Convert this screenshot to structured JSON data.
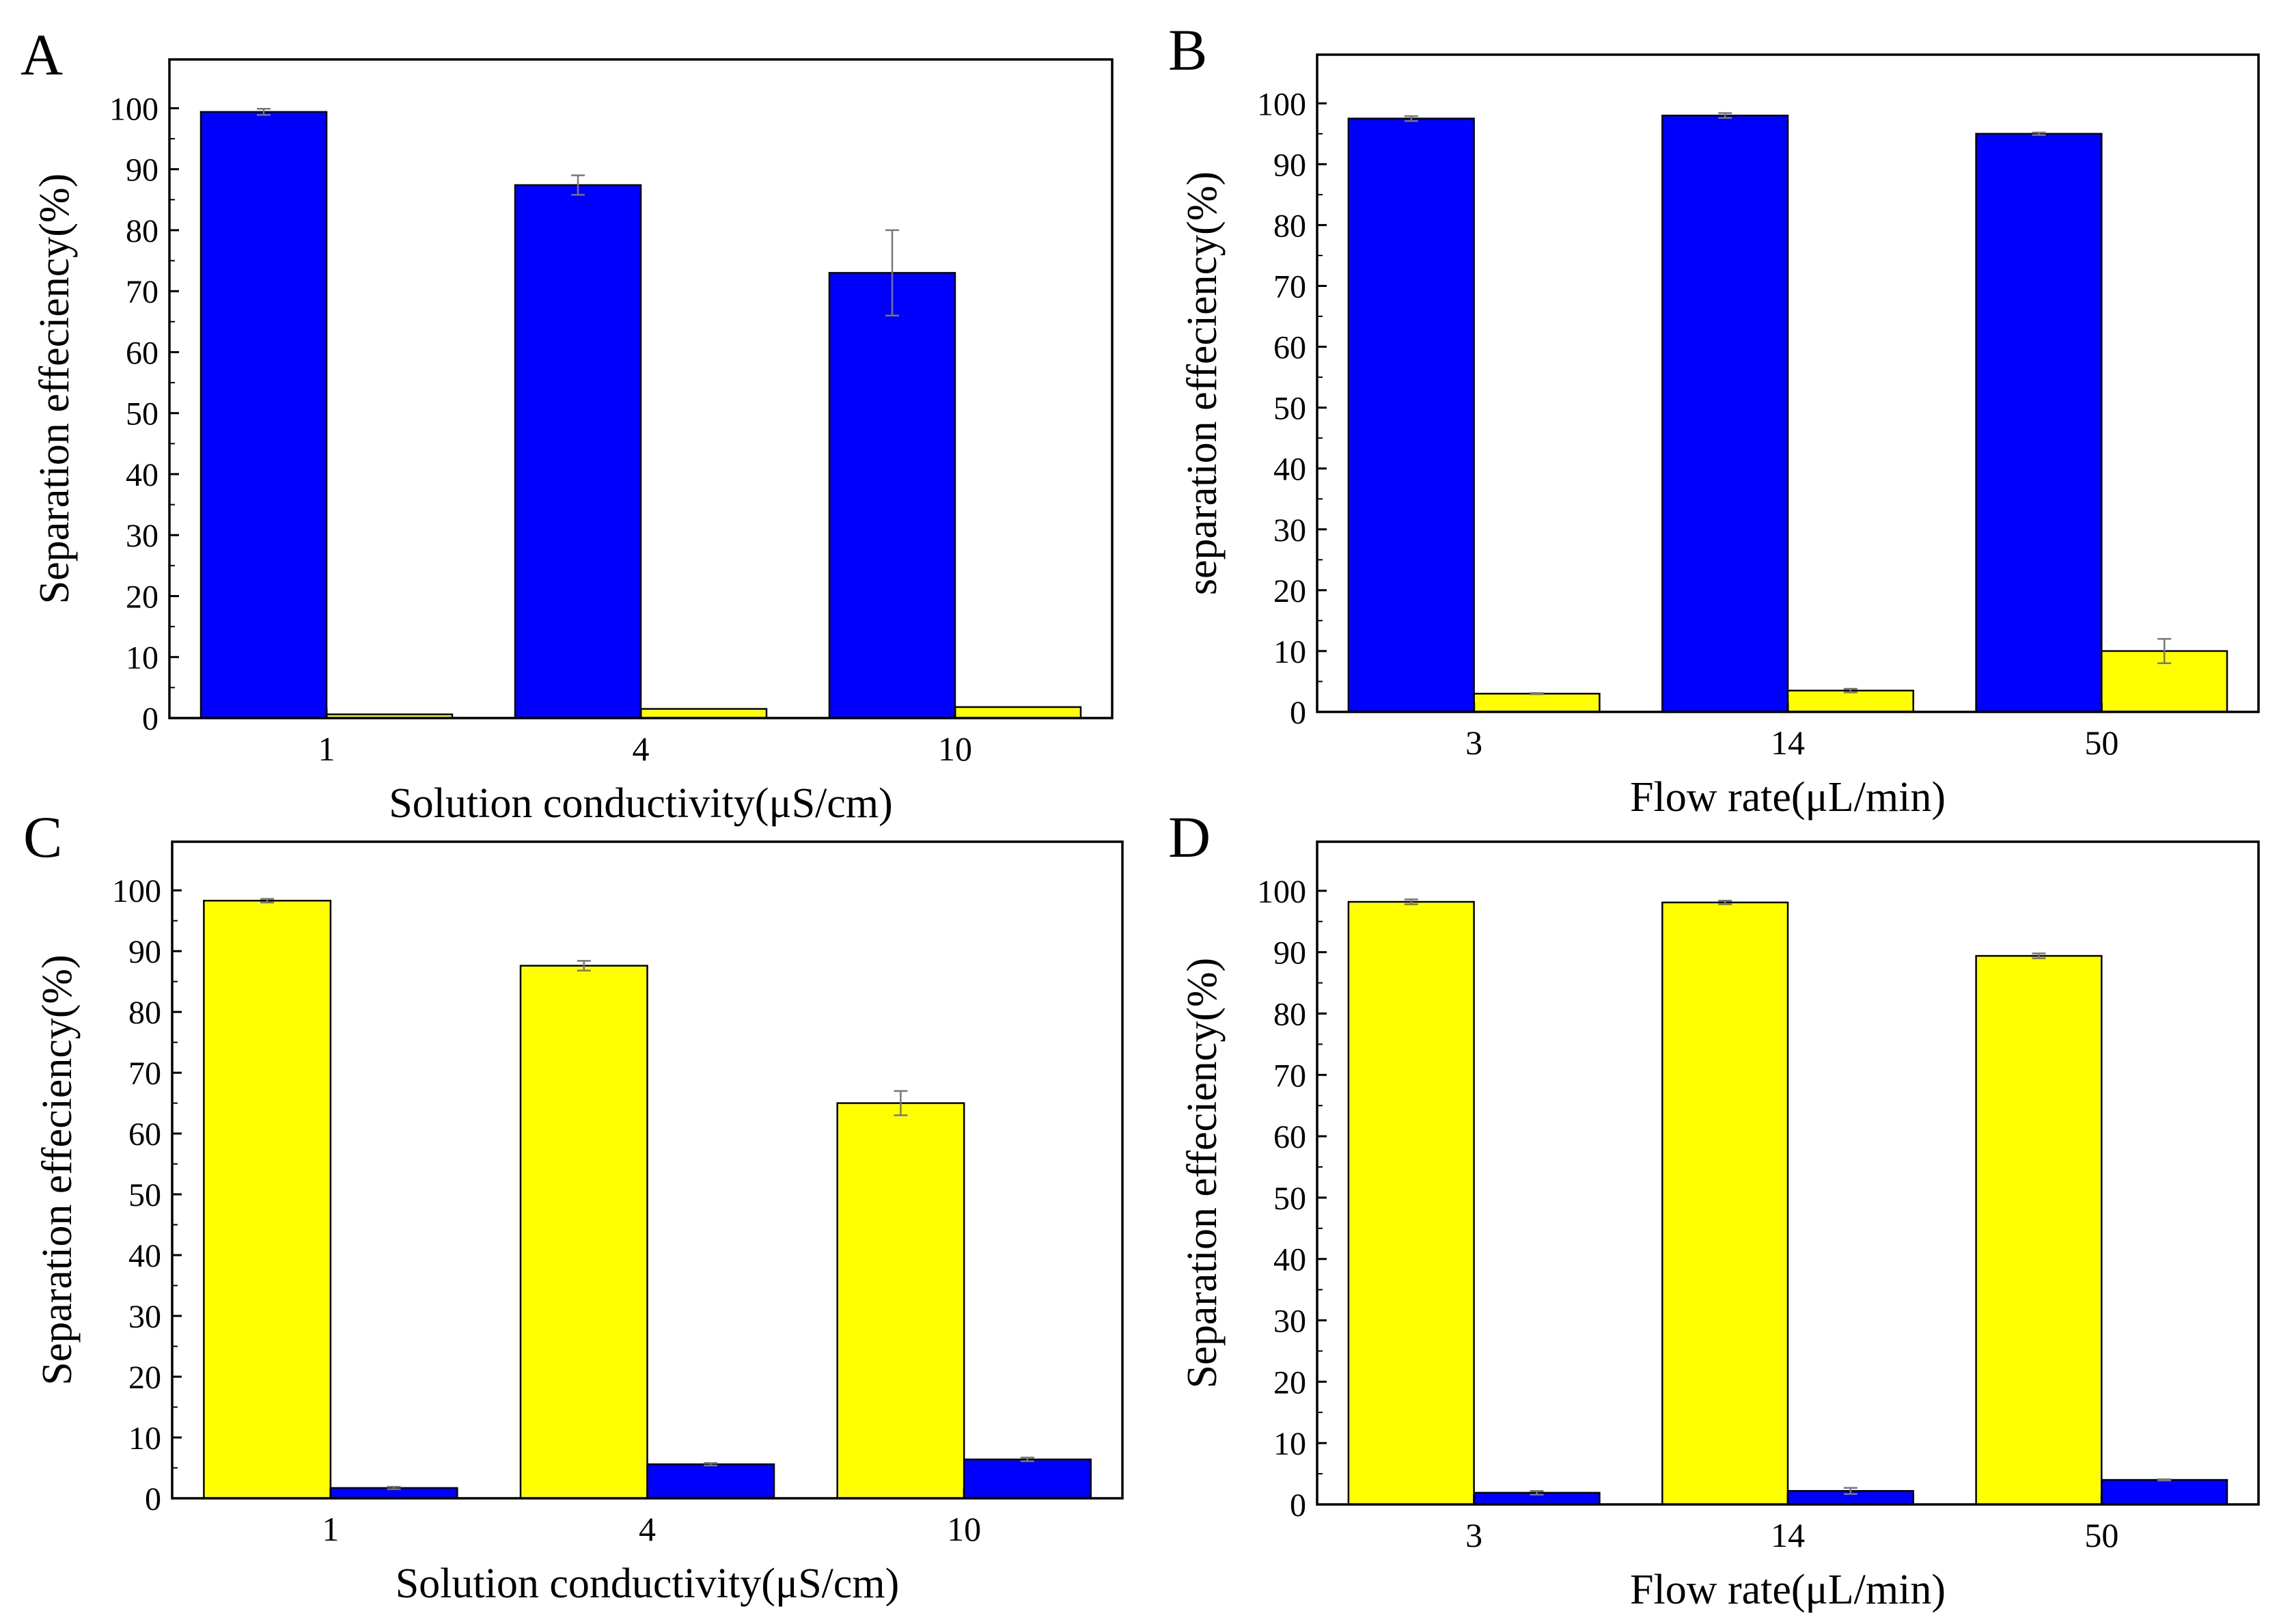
{
  "colors": {
    "blue": "#0000ff",
    "yellow": "#ffff00",
    "axis": "#000000",
    "errorbar": "#777777"
  },
  "chart_data": [
    {
      "type": "bar",
      "panel_label": "A",
      "xlabel": "Solution conductivity(μS/cm)",
      "ylabel": "Separation effeciency(%)",
      "ylim": [
        0,
        108
      ],
      "yticks": [
        "0",
        "10",
        "20",
        "30",
        "40",
        "50",
        "60",
        "70",
        "80",
        "90",
        "100"
      ],
      "categories": [
        "1",
        "4",
        "10"
      ],
      "series": [
        {
          "name": "series-1",
          "color": "blue",
          "values": [
            99.4,
            87.4,
            73.0
          ],
          "errors": [
            0.5,
            1.6,
            7.0
          ]
        },
        {
          "name": "series-2",
          "color": "yellow",
          "values": [
            0.6,
            1.5,
            1.8
          ],
          "errors": [
            0,
            0,
            0
          ]
        }
      ]
    },
    {
      "type": "bar",
      "panel_label": "B",
      "xlabel": "Flow rate(μL/min)",
      "ylabel": "separation effeciency(%)",
      "ylim": [
        0,
        108
      ],
      "yticks": [
        "0",
        "10",
        "20",
        "30",
        "40",
        "50",
        "60",
        "70",
        "80",
        "90",
        "100"
      ],
      "categories": [
        "3",
        "14",
        "50"
      ],
      "series": [
        {
          "name": "series-1",
          "color": "blue",
          "values": [
            97.5,
            98.0,
            95.0
          ],
          "errors": [
            0.4,
            0.4,
            0.2
          ]
        },
        {
          "name": "series-2",
          "color": "yellow",
          "values": [
            3.0,
            3.5,
            10.0
          ],
          "errors": [
            0.1,
            0.3,
            2.0
          ]
        }
      ]
    },
    {
      "type": "bar",
      "panel_label": "C",
      "xlabel": "Solution conductivity(μS/cm)",
      "ylabel": "Separation effeciency(%)",
      "ylim": [
        0,
        108
      ],
      "yticks": [
        "0",
        "10",
        "20",
        "30",
        "40",
        "50",
        "60",
        "70",
        "80",
        "90",
        "100"
      ],
      "categories": [
        "1",
        "4",
        "10"
      ],
      "series": [
        {
          "name": "series-1",
          "color": "yellow",
          "values": [
            98.3,
            87.6,
            65.0
          ],
          "errors": [
            0.3,
            0.8,
            2.0
          ]
        },
        {
          "name": "series-2",
          "color": "blue",
          "values": [
            1.7,
            5.6,
            6.4
          ],
          "errors": [
            0.2,
            0.2,
            0.3
          ]
        }
      ]
    },
    {
      "type": "bar",
      "panel_label": "D",
      "xlabel": "Flow rate(μL/min)",
      "ylabel": "Separation effeciency(%)",
      "ylim": [
        0,
        108
      ],
      "yticks": [
        "0",
        "10",
        "20",
        "30",
        "40",
        "50",
        "60",
        "70",
        "80",
        "90",
        "100"
      ],
      "categories": [
        "3",
        "14",
        "50"
      ],
      "series": [
        {
          "name": "series-1",
          "color": "yellow",
          "values": [
            98.2,
            98.1,
            89.4
          ],
          "errors": [
            0.4,
            0.3,
            0.4
          ]
        },
        {
          "name": "series-2",
          "color": "blue",
          "values": [
            1.9,
            2.2,
            4.0
          ],
          "errors": [
            0.3,
            0.5,
            0.1
          ]
        }
      ]
    }
  ]
}
